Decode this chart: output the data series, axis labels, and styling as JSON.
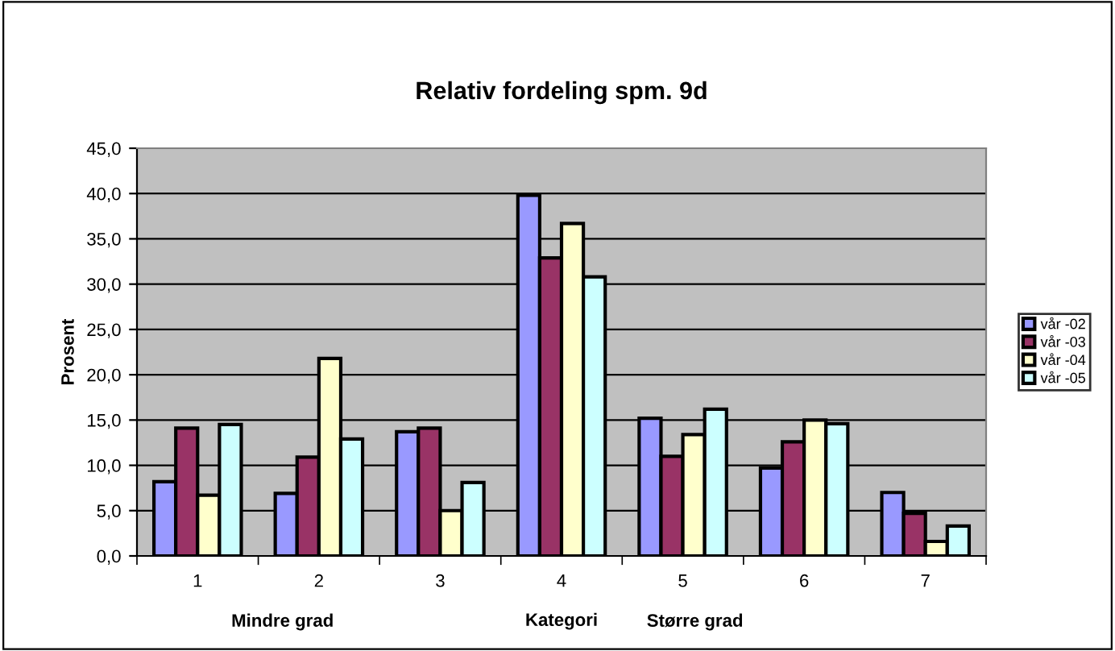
{
  "chart_data": {
    "type": "bar",
    "title": "Relativ fordeling spm. 9d",
    "xlabel": "Kategori",
    "ylabel": "Prosent",
    "categories": [
      "1",
      "2",
      "3",
      "4",
      "5",
      "6",
      "7"
    ],
    "series": [
      {
        "name": "vår -02",
        "color": "#9999ff",
        "values": [
          8.2,
          6.9,
          13.7,
          39.8,
          15.2,
          9.7,
          7.0
        ]
      },
      {
        "name": "vår -03",
        "color": "#993366",
        "values": [
          14.1,
          10.9,
          14.1,
          32.9,
          11.0,
          12.6,
          4.7
        ]
      },
      {
        "name": "vår -04",
        "color": "#ffffcc",
        "values": [
          6.7,
          21.8,
          5.0,
          36.7,
          13.4,
          15.0,
          1.6
        ]
      },
      {
        "name": "vår -05",
        "color": "#ccffff",
        "values": [
          14.5,
          12.9,
          8.1,
          30.8,
          16.2,
          14.6,
          3.3
        ]
      }
    ],
    "ylim": [
      0,
      45
    ],
    "yticks": [
      {
        "value": 0,
        "label": "0,0"
      },
      {
        "value": 5,
        "label": "5,0"
      },
      {
        "value": 10,
        "label": "10,0"
      },
      {
        "value": 15,
        "label": "15,0"
      },
      {
        "value": 20,
        "label": "20,0"
      },
      {
        "value": 25,
        "label": "25,0"
      },
      {
        "value": 30,
        "label": "30,0"
      },
      {
        "value": 35,
        "label": "35,0"
      },
      {
        "value": 40,
        "label": "40,0"
      },
      {
        "value": 45,
        "label": "45,0"
      }
    ],
    "grid": "y",
    "legend": "right",
    "annotations": [
      "Mindre grad",
      "Større grad"
    ]
  }
}
